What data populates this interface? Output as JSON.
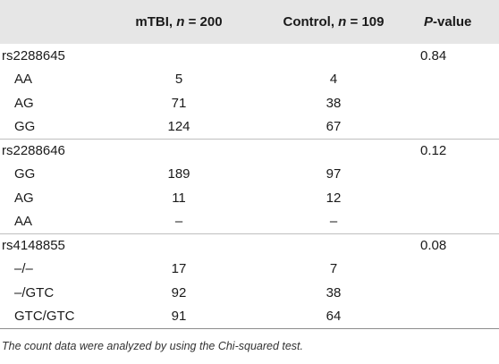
{
  "header": {
    "col0": "",
    "col1_prefix": "mTBI, ",
    "col1_var": "n",
    "col1_suffix": " = 200",
    "col2_prefix": "Control, ",
    "col2_var": "n",
    "col2_suffix": " = 109",
    "col3_var": "P",
    "col3_suffix": "-value"
  },
  "rows": [
    {
      "label": "rs2288645",
      "mtbi": "",
      "control": "",
      "p": "0.84"
    },
    {
      "label": "AA",
      "mtbi": "5",
      "control": "4",
      "p": ""
    },
    {
      "label": "AG",
      "mtbi": "71",
      "control": "38",
      "p": ""
    },
    {
      "label": "GG",
      "mtbi": "124",
      "control": "67",
      "p": ""
    },
    {
      "label": "rs2288646",
      "mtbi": "",
      "control": "",
      "p": "0.12"
    },
    {
      "label": "GG",
      "mtbi": "189",
      "control": "97",
      "p": ""
    },
    {
      "label": "AG",
      "mtbi": "11",
      "control": "12",
      "p": ""
    },
    {
      "label": "AA",
      "mtbi": "–",
      "control": "–",
      "p": ""
    },
    {
      "label": "rs4148855",
      "mtbi": "",
      "control": "",
      "p": "0.08"
    },
    {
      "label": "–/–",
      "mtbi": "17",
      "control": "7",
      "p": ""
    },
    {
      "label": "–/GTC",
      "mtbi": "92",
      "control": "38",
      "p": ""
    },
    {
      "label": "GTC/GTC",
      "mtbi": "91",
      "control": "64",
      "p": ""
    }
  ],
  "note": "The count data were analyzed by using the Chi-squared test."
}
